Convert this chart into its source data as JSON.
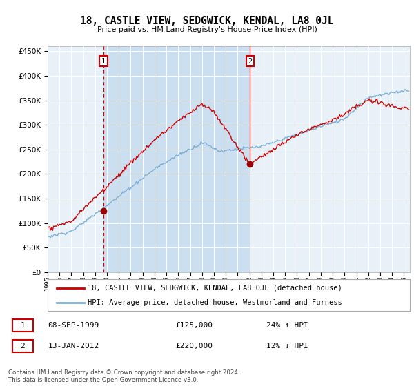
{
  "title": "18, CASTLE VIEW, SEDGWICK, KENDAL, LA8 0JL",
  "subtitle": "Price paid vs. HM Land Registry's House Price Index (HPI)",
  "footer": "Contains HM Land Registry data © Crown copyright and database right 2024.\nThis data is licensed under the Open Government Licence v3.0.",
  "legend_line1": "18, CASTLE VIEW, SEDGWICK, KENDAL, LA8 0JL (detached house)",
  "legend_line2": "HPI: Average price, detached house, Westmorland and Furness",
  "sale1_date": "08-SEP-1999",
  "sale1_price": 125000,
  "sale1_hpi": "24% ↑ HPI",
  "sale2_date": "13-JAN-2012",
  "sale2_price": 220000,
  "sale2_hpi": "12% ↓ HPI",
  "hpi_color": "#7bafd4",
  "sale_color": "#cc0000",
  "vline_color": "#cc0000",
  "marker_color": "#990000",
  "between_fill_color": "#ccdff0",
  "outside_fill_color": "#e8f0f8",
  "plot_bg_color": "#e8f0f8",
  "ylim": [
    0,
    450000
  ],
  "yticks": [
    0,
    50000,
    100000,
    150000,
    200000,
    250000,
    300000,
    350000,
    400000,
    450000
  ],
  "x_start_year": 1995,
  "x_end_year": 2025,
  "sale1_year": 1999.708,
  "sale2_year": 2012.042
}
